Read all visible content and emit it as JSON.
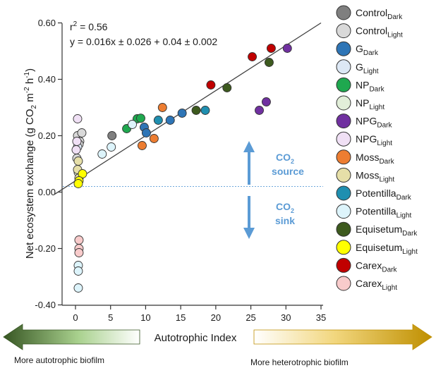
{
  "chart_data": {
    "type": "scatter",
    "ylabel": "Net ecosystem exchange (g CO",
    "ylabel_sub": "2",
    "ylabel_mid": " m",
    "ylabel_sup1": "-2",
    "ylabel_mid2": " h",
    "ylabel_sup2": "-1",
    "ylabel_end": ")",
    "xlim": [
      -3,
      35
    ],
    "ylim": [
      -0.4,
      0.6
    ],
    "x_ticks": [
      0,
      5,
      10,
      15,
      20,
      25,
      30,
      35
    ],
    "y_ticks": [
      -0.4,
      -0.2,
      0.0,
      0.2,
      0.4,
      0.6
    ],
    "y_tick_labels": [
      "-0.40",
      "-0.20",
      "0.00",
      "0.20",
      "0.40",
      "0.60"
    ],
    "grid": false,
    "annotation": {
      "r2_prefix": "r",
      "r2_sup": "2",
      "r2_value": " = 0.56",
      "equation": "y = 0.016x ± 0.026 + 0.04 ± 0.002"
    },
    "regression": {
      "slope": 0.016,
      "intercept": 0.04
    },
    "reference_line_y": 0.02,
    "co2_source": {
      "prefix": "CO",
      "sub": "2",
      "label": "source"
    },
    "co2_sink": {
      "prefix": "CO",
      "sub": "2",
      "label": "sink"
    },
    "xlabel": "Autotrophic Index",
    "left_caption": "More autotrophic biofilm",
    "right_caption": "More heterotrophic biofilm",
    "series": [
      {
        "name": "Control",
        "sub": "Dark",
        "color": "#7f7f7f",
        "points": [
          [
            5.2,
            0.2
          ]
        ]
      },
      {
        "name": "Control",
        "sub": "Light",
        "color": "#d9d9d9",
        "points": [
          [
            0.3,
            0.2
          ],
          [
            0.6,
            0.18
          ],
          [
            0.9,
            0.21
          ],
          [
            0.5,
            0.17
          ],
          [
            0.2,
            0.12
          ]
        ]
      },
      {
        "name": "G",
        "sub": "Dark",
        "color": "#2e75b6",
        "points": [
          [
            9.8,
            0.23
          ],
          [
            13.5,
            0.255
          ],
          [
            15.2,
            0.28
          ],
          [
            10.1,
            0.21
          ]
        ]
      },
      {
        "name": "G",
        "sub": "Light",
        "color": "#dde8f5",
        "points": [
          [
            0.3,
            0.16
          ]
        ]
      },
      {
        "name": "NP",
        "sub": "Dark",
        "color": "#1fa84f",
        "points": [
          [
            8.8,
            0.26
          ],
          [
            9.3,
            0.262
          ],
          [
            7.3,
            0.225
          ]
        ]
      },
      {
        "name": "NP",
        "sub": "Light",
        "color": "#e2efd9",
        "points": [
          [
            0.4,
            0.07
          ]
        ]
      },
      {
        "name": "NPG",
        "sub": "Dark",
        "color": "#7030a0",
        "points": [
          [
            30.2,
            0.51
          ],
          [
            27.2,
            0.32
          ],
          [
            26.2,
            0.29
          ]
        ]
      },
      {
        "name": "NPG",
        "sub": "Light",
        "color": "#f0e0f5",
        "points": [
          [
            0.3,
            0.26
          ],
          [
            0.2,
            0.18
          ],
          [
            0.1,
            0.15
          ]
        ]
      },
      {
        "name": "Moss",
        "sub": "Dark",
        "color": "#ed7d31",
        "points": [
          [
            9.5,
            0.165
          ],
          [
            11.2,
            0.19
          ],
          [
            12.4,
            0.3
          ]
        ]
      },
      {
        "name": "Moss",
        "sub": "Light",
        "color": "#e6dfa8",
        "points": [
          [
            0.4,
            0.11
          ],
          [
            0.3,
            0.08
          ],
          [
            0.5,
            0.05
          ]
        ]
      },
      {
        "name": "Potentilla",
        "sub": "Dark",
        "color": "#1f8fb0",
        "points": [
          [
            18.5,
            0.29
          ],
          [
            11.8,
            0.255
          ]
        ]
      },
      {
        "name": "Potentilla",
        "sub": "Light",
        "color": "#ddf4fb",
        "points": [
          [
            3.8,
            0.135
          ],
          [
            5.1,
            0.16
          ],
          [
            8.1,
            0.24
          ],
          [
            0.4,
            -0.26
          ],
          [
            0.4,
            -0.28
          ],
          [
            0.4,
            -0.34
          ]
        ]
      },
      {
        "name": "Equisetum",
        "sub": "Dark",
        "color": "#3d5a1e",
        "points": [
          [
            17.2,
            0.29
          ],
          [
            21.6,
            0.37
          ],
          [
            27.6,
            0.46
          ]
        ]
      },
      {
        "name": "Equisetum",
        "sub": "Light",
        "color": "#ffff00",
        "points": [
          [
            1.0,
            0.065
          ],
          [
            0.5,
            0.04
          ],
          [
            0.4,
            0.03
          ]
        ]
      },
      {
        "name": "Carex",
        "sub": "Dark",
        "color": "#c00000",
        "points": [
          [
            19.3,
            0.38
          ],
          [
            25.2,
            0.48
          ],
          [
            27.9,
            0.51
          ]
        ]
      },
      {
        "name": "Carex",
        "sub": "Light",
        "color": "#f8cbcb",
        "points": [
          [
            0.5,
            -0.17
          ],
          [
            0.5,
            -0.2
          ],
          [
            0.5,
            -0.215
          ]
        ]
      }
    ]
  }
}
